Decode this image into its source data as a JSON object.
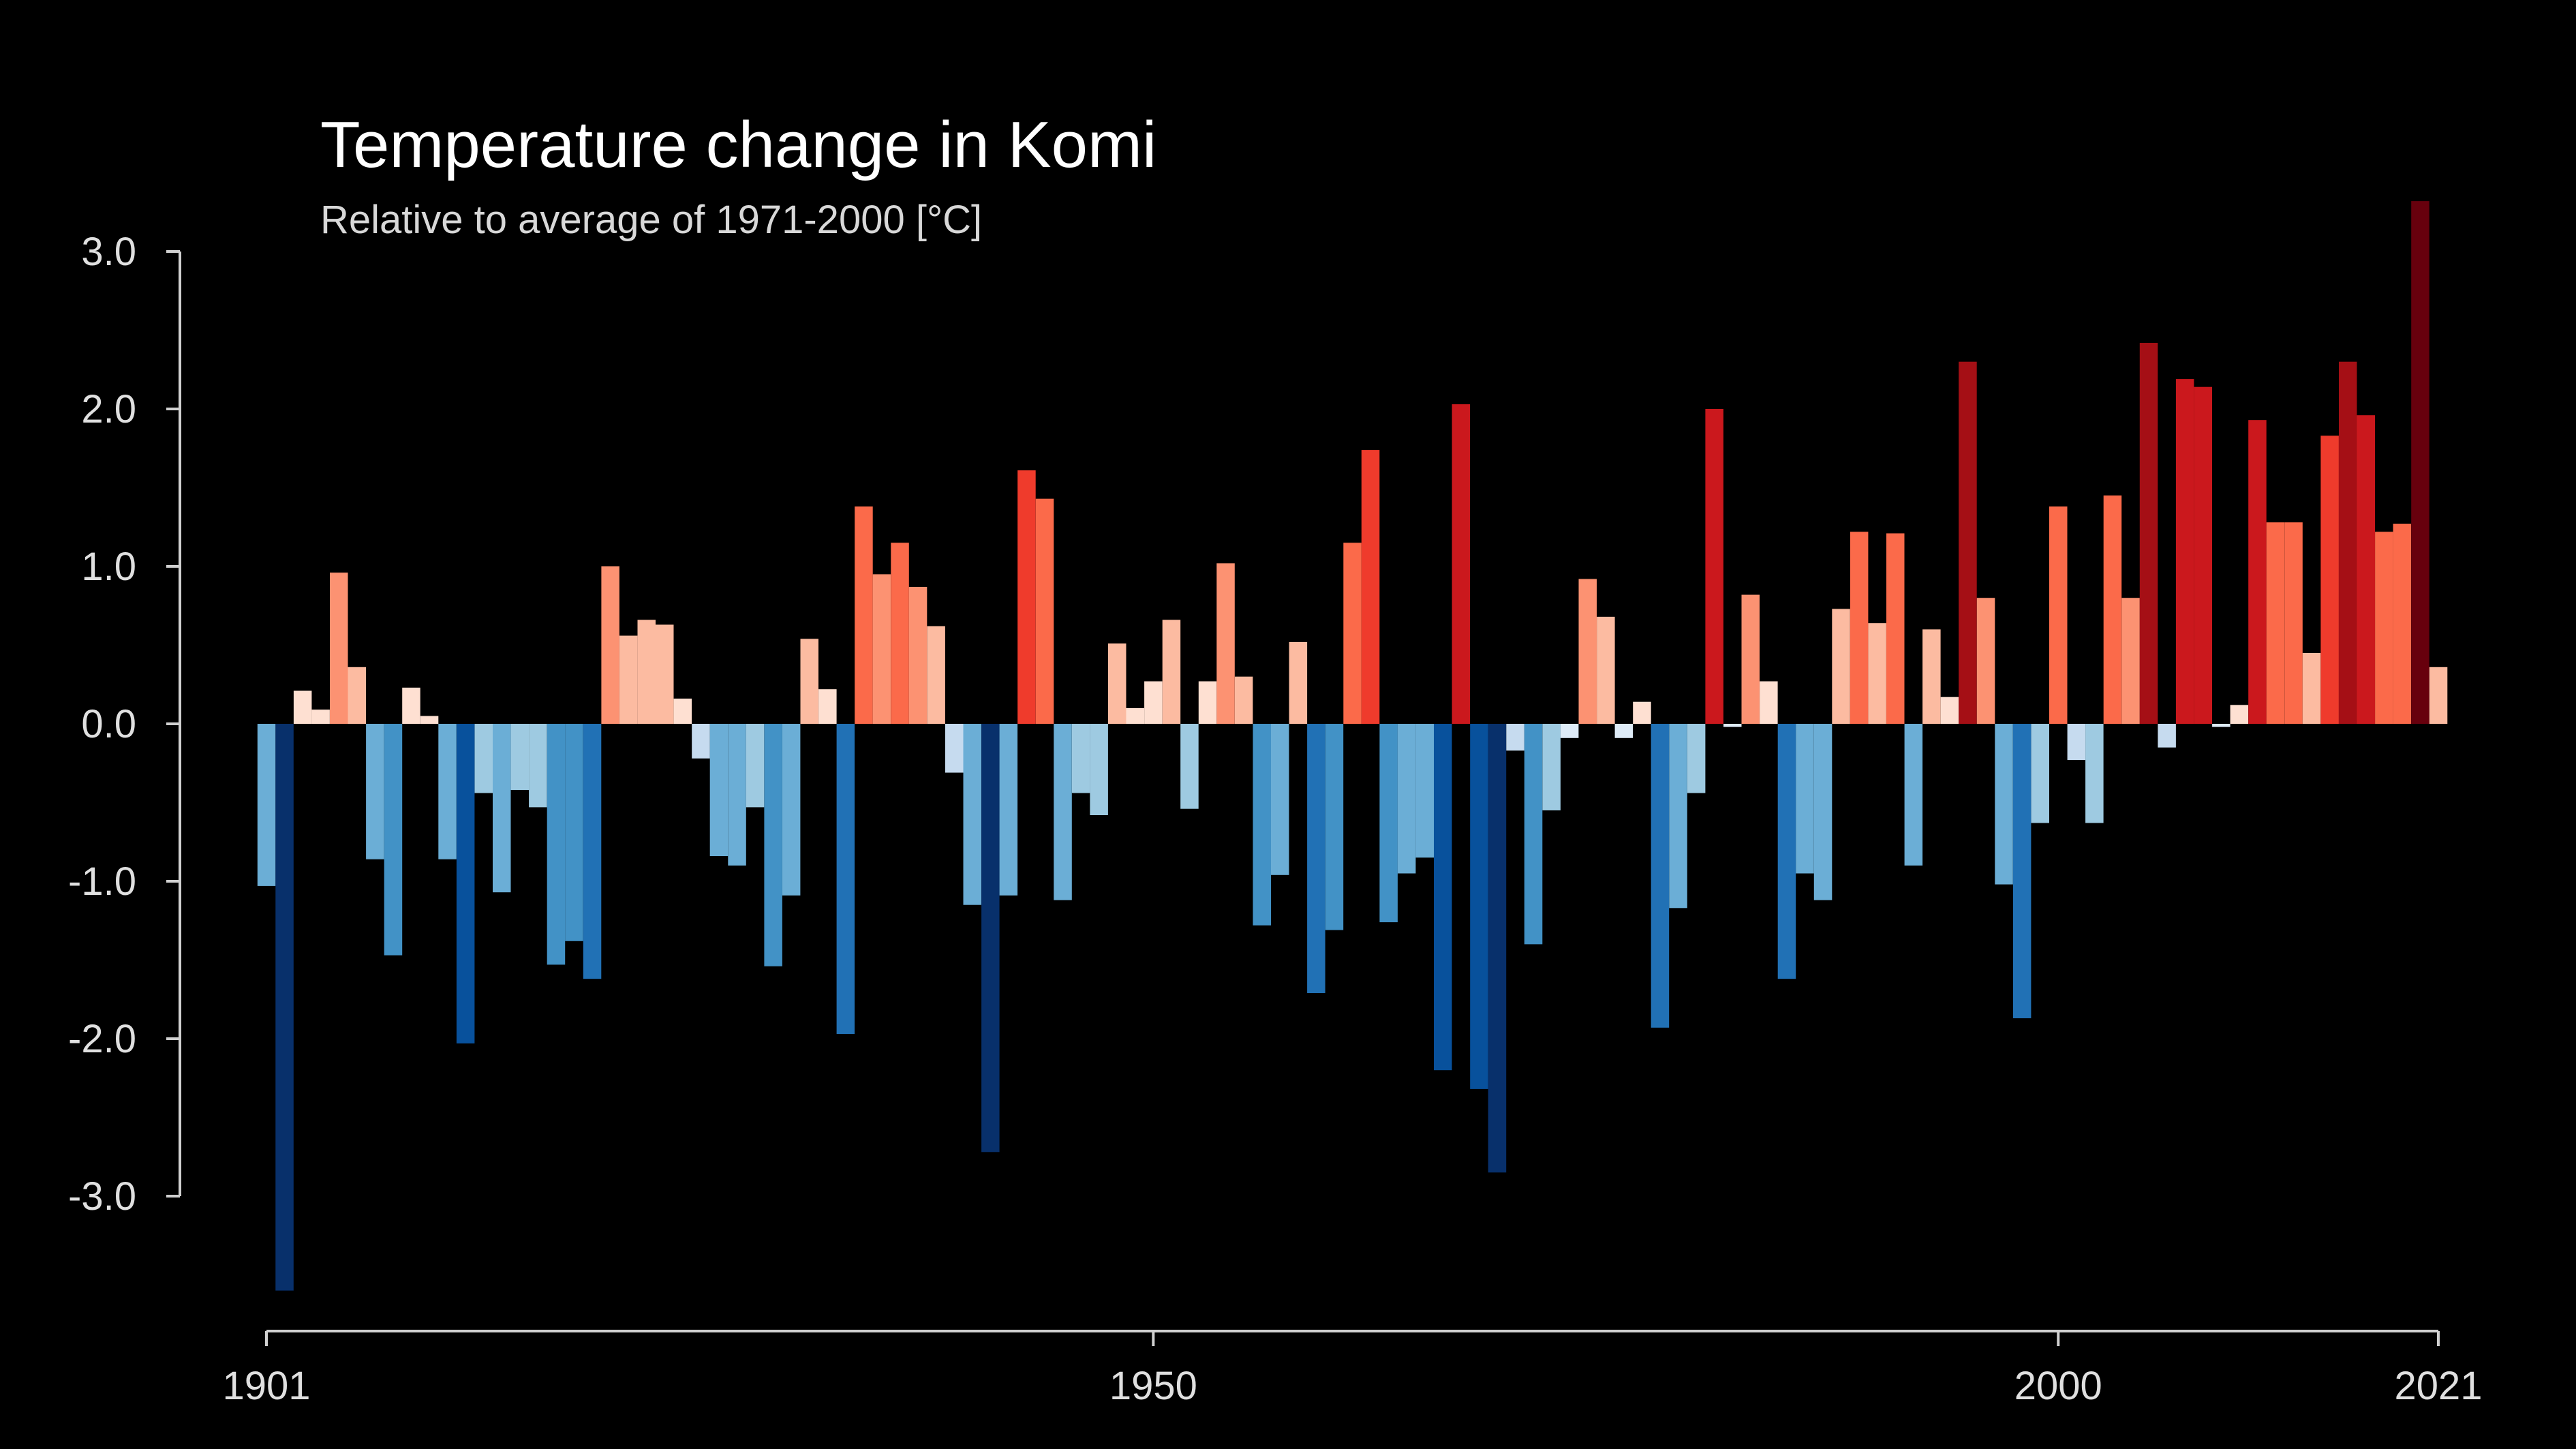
{
  "chart_data": {
    "type": "bar",
    "title": "Temperature change in Komi",
    "subtitle": "Relative to average of 1971-2000  [°C]",
    "xlabel": "",
    "ylabel": "",
    "x_start": 1901,
    "x_end": 2021,
    "x_ticks": [
      "1901",
      "1950",
      "2000",
      "2021"
    ],
    "y_ticks": [
      "3.0",
      "2.0",
      "1.0",
      "0.0",
      "-1.0",
      "-2.0",
      "-3.0"
    ],
    "ylim": [
      -3.6,
      3.3
    ],
    "grid": false,
    "legend": "none",
    "color_scale": [
      "#08306b",
      "#08519c",
      "#2171b5",
      "#4292c6",
      "#6baed6",
      "#9ecae1",
      "#c6dbef",
      "#deebf7",
      "#fee0d2",
      "#fcbba1",
      "#fc9272",
      "#fb6a4a",
      "#ef3b2c",
      "#cb181d",
      "#a50f15",
      "#67000d"
    ],
    "years": [
      1901,
      1902,
      1903,
      1904,
      1905,
      1906,
      1907,
      1908,
      1909,
      1910,
      1911,
      1912,
      1913,
      1914,
      1915,
      1916,
      1917,
      1918,
      1919,
      1920,
      1921,
      1922,
      1923,
      1924,
      1925,
      1926,
      1927,
      1928,
      1929,
      1930,
      1931,
      1932,
      1933,
      1934,
      1935,
      1936,
      1937,
      1938,
      1939,
      1940,
      1941,
      1942,
      1943,
      1944,
      1945,
      1946,
      1947,
      1948,
      1949,
      1950,
      1951,
      1952,
      1953,
      1954,
      1955,
      1956,
      1957,
      1958,
      1959,
      1960,
      1961,
      1962,
      1963,
      1964,
      1965,
      1966,
      1967,
      1968,
      1969,
      1970,
      1971,
      1972,
      1973,
      1974,
      1975,
      1976,
      1977,
      1978,
      1979,
      1980,
      1981,
      1982,
      1983,
      1984,
      1985,
      1986,
      1987,
      1988,
      1989,
      1990,
      1991,
      1992,
      1993,
      1994,
      1995,
      1996,
      1997,
      1998,
      1999,
      2000,
      2001,
      2002,
      2003,
      2004,
      2005,
      2006,
      2007,
      2008,
      2009,
      2010,
      2011,
      2012,
      2013,
      2014,
      2015,
      2016,
      2017,
      2018,
      2019,
      2020,
      2021
    ],
    "values": [
      -1.03,
      -3.6,
      0.21,
      0.09,
      0.96,
      0.36,
      -0.86,
      -1.47,
      0.23,
      0.05,
      -0.86,
      -2.03,
      -0.44,
      -1.07,
      -0.42,
      -0.53,
      -1.53,
      -1.38,
      -1.62,
      1.0,
      0.56,
      0.66,
      0.63,
      0.16,
      -0.22,
      -0.84,
      -0.9,
      -0.53,
      -1.54,
      -1.09,
      0.54,
      0.22,
      -1.97,
      1.38,
      0.95,
      1.15,
      0.87,
      0.62,
      -0.31,
      -1.15,
      -2.72,
      -1.09,
      1.61,
      1.43,
      -1.12,
      -0.44,
      -0.58,
      0.51,
      0.1,
      0.27,
      0.66,
      -0.54,
      0.27,
      1.02,
      0.3,
      -1.28,
      -0.96,
      0.52,
      -1.71,
      -1.31,
      1.15,
      1.74,
      -1.26,
      -0.95,
      -0.85,
      -2.2,
      2.03,
      -2.32,
      -2.85,
      -0.17,
      -1.4,
      -0.55,
      -0.09,
      0.92,
      0.68,
      -0.09,
      0.14,
      -1.93,
      -1.17,
      -0.44,
      2.0,
      -0.02,
      0.82,
      0.27,
      -1.62,
      -0.95,
      -1.12,
      0.73,
      1.22,
      0.64,
      1.21,
      -0.9,
      0.6,
      0.17,
      2.3,
      0.8,
      -1.02,
      -1.87,
      -0.63,
      1.38,
      -0.23,
      -0.63,
      1.45,
      0.8,
      2.42,
      -0.15,
      2.19,
      2.14,
      -0.02,
      0.12,
      1.93,
      1.28,
      1.28,
      0.45,
      1.83,
      2.3,
      1.96,
      1.22,
      1.27,
      3.32,
      0.36
    ]
  }
}
